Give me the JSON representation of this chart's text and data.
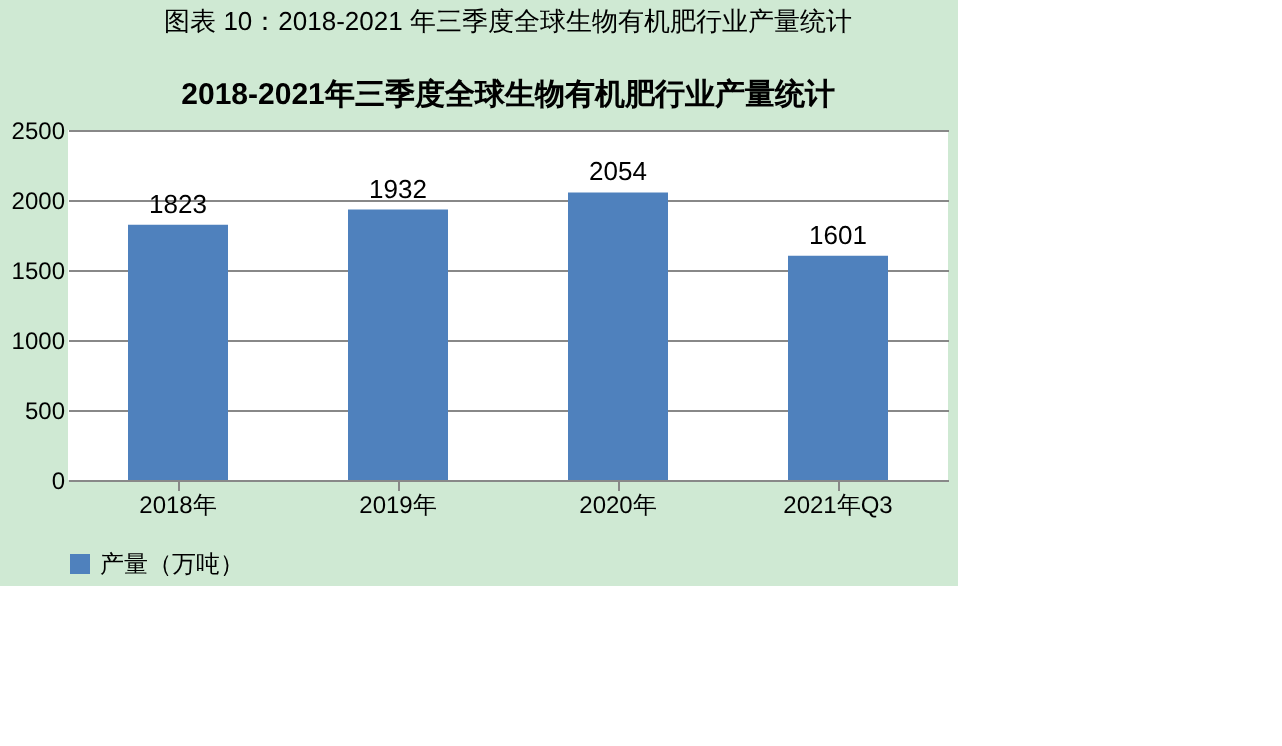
{
  "chart_data": {
    "type": "bar",
    "title": "图表 10：2018-2021 年三季度全球生物有机肥行业产量统计",
    "subtitle": "2018-2021年三季度全球生物有机肥行业产量统计",
    "categories": [
      "2018年",
      "2019年",
      "2020年",
      "2021年Q3"
    ],
    "series": [
      {
        "name": "产量（万吨）",
        "color": "#4f81bd",
        "values": [
          1823,
          1932,
          2054,
          1601
        ]
      }
    ],
    "ylim": [
      0,
      2500
    ],
    "yticks": [
      0,
      500,
      1000,
      1500,
      2000,
      2500
    ],
    "grid": "y",
    "legend": "bottom",
    "data_labels": true
  }
}
